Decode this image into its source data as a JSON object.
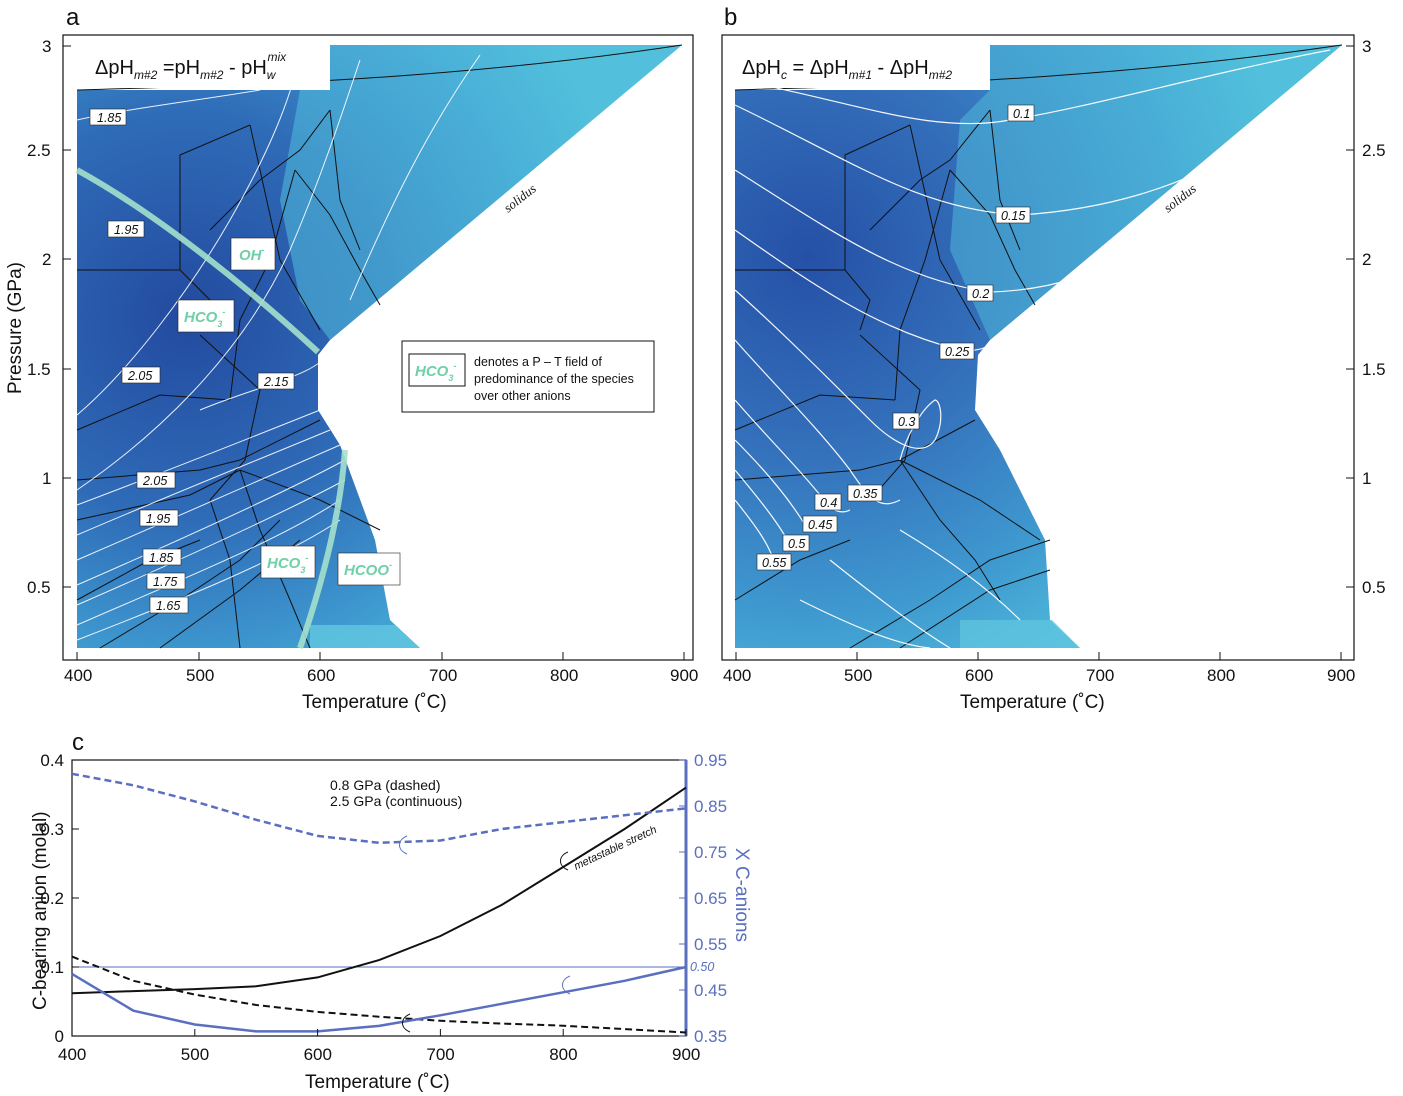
{
  "panels": {
    "a": {
      "letter": "a",
      "eq_left": "ΔpH",
      "eq_left_sub": "m#2",
      "eq_mid": " =pH",
      "eq_mid_sub": "m#2",
      "eq_right": " - pH",
      "eq_right_sub": "w",
      "eq_right_sup": "mix",
      "solidus": "solidus",
      "contour_labels": [
        "1.85",
        "1.95",
        "2.05",
        "2.15",
        "2.05",
        "1.95",
        "1.85",
        "1.75",
        "1.65"
      ],
      "species": [
        {
          "text": "OH",
          "sup": "-"
        },
        {
          "text": "HCO",
          "sub": "3",
          "sup": "-"
        },
        {
          "text": "HCO",
          "sub": "3",
          "sup": "-"
        },
        {
          "text": "HCOO",
          "sup": "-"
        }
      ],
      "legend": {
        "species": "HCO",
        "species_sub": "3",
        "species_sup": "-",
        "line1": "denotes a P – T field of",
        "line2": "predominance of the species",
        "line3": "over other anions"
      }
    },
    "b": {
      "letter": "b",
      "eq": "ΔpH",
      "eq_sub1": "c",
      "eq_mid": " = ΔpH",
      "eq_sub2": "m#1",
      "eq_right": " - ΔpH",
      "eq_sub3": "m#2",
      "solidus": "solidus",
      "contour_labels": [
        "0.1",
        "0.15",
        "0.2",
        "0.25",
        "0.3",
        "0.35",
        "0.4",
        "0.45",
        "0.5",
        "0.55"
      ]
    },
    "c": {
      "letter": "c",
      "note_line1": "0.8 GPa (dashed)",
      "note_line2": "2.5 GPa (continuous)",
      "metastable": "metastable stretch",
      "ref_label": "0.50"
    }
  },
  "axes": {
    "ab_xlabel": "Temperature (˚C)",
    "ab_ylabel": "Pressure (GPa)",
    "ab_xticks": [
      "400",
      "500",
      "600",
      "700",
      "800",
      "900"
    ],
    "ab_yticks": [
      "0.5",
      "1",
      "1.5",
      "2",
      "2.5",
      "3"
    ],
    "c_xlabel": "Temperature (˚C)",
    "c_ylabel": "C-bearing anion (molal)",
    "c_y2label": "X C-anions",
    "c_xticks": [
      "400",
      "500",
      "600",
      "700",
      "800",
      "900"
    ],
    "c_yticks": [
      "0",
      "0.1",
      "0.2",
      "0.3",
      "0.4"
    ],
    "c_y2ticks": [
      "0.35",
      "0.45",
      "0.55",
      "0.65",
      "0.75",
      "0.85",
      "0.95"
    ]
  },
  "colors": {
    "deep": "#2a55a8",
    "mid": "#3a84c4",
    "light": "#52bfdc",
    "species_green": "#6fd0a8",
    "blue_axis": "#5a6fc0"
  },
  "chart_data": [
    {
      "type": "heatmap",
      "panel": "a",
      "xlabel": "Temperature (˚C)",
      "ylabel": "Pressure (GPa)",
      "xlim": [
        400,
        900
      ],
      "ylim": [
        0.2,
        3.0
      ],
      "solidus_T": [
        680,
        650,
        640,
        620,
        600,
        600,
        620,
        900
      ],
      "solidus_P": [
        0.2,
        0.3,
        0.7,
        1.1,
        1.3,
        1.6,
        1.6,
        3.0
      ],
      "contours": [
        1.65,
        1.75,
        1.85,
        1.95,
        2.05,
        2.15
      ]
    },
    {
      "type": "heatmap",
      "panel": "b",
      "xlabel": "Temperature (˚C)",
      "ylabel": "",
      "xlim": [
        400,
        900
      ],
      "ylim": [
        0.2,
        3.0
      ],
      "contours": [
        0.1,
        0.15,
        0.2,
        0.25,
        0.3,
        0.35,
        0.4,
        0.45,
        0.5,
        0.55
      ]
    },
    {
      "type": "line",
      "panel": "c",
      "xlabel": "Temperature (˚C)",
      "ylabel": "C-bearing anion (molal)",
      "y2label": "X C-anions",
      "xlim": [
        400,
        900
      ],
      "ylim": [
        0,
        0.4
      ],
      "y2lim": [
        0.35,
        0.95
      ],
      "series": [
        {
          "axis": "left",
          "style": "solid",
          "color": "#111111",
          "x": [
            400,
            450,
            500,
            550,
            600,
            650,
            700,
            750,
            800,
            850,
            900
          ],
          "y": [
            0.062,
            0.065,
            0.068,
            0.072,
            0.085,
            0.11,
            0.145,
            0.19,
            0.245,
            0.3,
            0.36
          ]
        },
        {
          "axis": "left",
          "style": "dashed",
          "color": "#111111",
          "x": [
            400,
            450,
            500,
            550,
            600,
            650,
            700,
            750,
            800,
            850,
            900
          ],
          "y": [
            0.115,
            0.08,
            0.06,
            0.045,
            0.035,
            0.028,
            0.022,
            0.018,
            0.015,
            0.01,
            0.005
          ]
        },
        {
          "axis": "right",
          "style": "solid",
          "color": "#5a6fc0",
          "x": [
            400,
            450,
            500,
            550,
            600,
            650,
            700,
            750,
            800,
            850,
            900
          ],
          "y": [
            0.485,
            0.405,
            0.375,
            0.36,
            0.36,
            0.372,
            0.395,
            0.42,
            0.445,
            0.47,
            0.5
          ]
        },
        {
          "axis": "right",
          "style": "dashed",
          "color": "#5a6fc0",
          "x": [
            400,
            450,
            500,
            550,
            600,
            650,
            700,
            750,
            800,
            850,
            900
          ],
          "y": [
            0.92,
            0.895,
            0.86,
            0.82,
            0.785,
            0.77,
            0.775,
            0.8,
            0.815,
            0.83,
            0.845
          ]
        }
      ],
      "reference_line": {
        "axis": "right",
        "y": 0.5
      }
    }
  ]
}
